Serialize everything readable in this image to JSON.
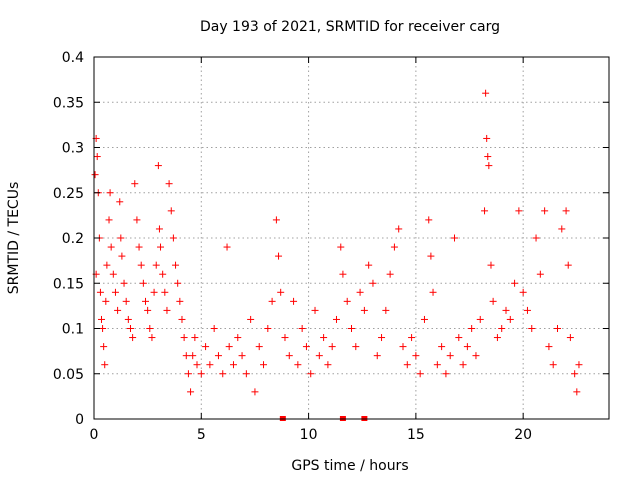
{
  "chart_data": {
    "type": "scatter",
    "title": "Day 193 of 2021, SRMTID for receiver carg",
    "xlabel": "GPS time / hours",
    "ylabel": "SRMTID / TECUs",
    "xlim": [
      0,
      24
    ],
    "ylim": [
      0,
      0.4
    ],
    "xticks": [
      0,
      5,
      10,
      15,
      20
    ],
    "xtick_labels": [
      "0",
      "5",
      "10",
      "15",
      "20"
    ],
    "yticks": [
      0,
      0.05,
      0.1,
      0.15,
      0.2,
      0.25,
      0.3,
      0.35,
      0.4
    ],
    "ytick_labels": [
      "0",
      "0.05",
      "0.1",
      "0.15",
      "0.2",
      "0.25",
      "0.3",
      "0.35",
      "0.4"
    ],
    "grid": true,
    "marker": "+",
    "color": "#ff0000",
    "series": [
      {
        "name": "SRMTID",
        "points": [
          [
            0.05,
            0.27
          ],
          [
            0.1,
            0.31
          ],
          [
            0.15,
            0.29
          ],
          [
            0.2,
            0.25
          ],
          [
            0.25,
            0.2
          ],
          [
            0.1,
            0.16
          ],
          [
            0.3,
            0.14
          ],
          [
            0.35,
            0.11
          ],
          [
            0.4,
            0.1
          ],
          [
            0.45,
            0.08
          ],
          [
            0.5,
            0.06
          ],
          [
            0.55,
            0.13
          ],
          [
            0.6,
            0.17
          ],
          [
            0.7,
            0.22
          ],
          [
            0.75,
            0.25
          ],
          [
            0.8,
            0.19
          ],
          [
            0.9,
            0.16
          ],
          [
            1.0,
            0.14
          ],
          [
            1.1,
            0.12
          ],
          [
            1.2,
            0.24
          ],
          [
            1.25,
            0.2
          ],
          [
            1.3,
            0.18
          ],
          [
            1.4,
            0.15
          ],
          [
            1.5,
            0.13
          ],
          [
            1.6,
            0.11
          ],
          [
            1.7,
            0.1
          ],
          [
            1.8,
            0.09
          ],
          [
            1.9,
            0.26
          ],
          [
            2.0,
            0.22
          ],
          [
            2.1,
            0.19
          ],
          [
            2.2,
            0.17
          ],
          [
            2.3,
            0.15
          ],
          [
            2.4,
            0.13
          ],
          [
            2.5,
            0.12
          ],
          [
            2.6,
            0.1
          ],
          [
            2.7,
            0.09
          ],
          [
            2.8,
            0.14
          ],
          [
            2.9,
            0.17
          ],
          [
            3.0,
            0.28
          ],
          [
            3.05,
            0.21
          ],
          [
            3.1,
            0.19
          ],
          [
            3.2,
            0.16
          ],
          [
            3.3,
            0.14
          ],
          [
            3.4,
            0.12
          ],
          [
            3.5,
            0.26
          ],
          [
            3.6,
            0.23
          ],
          [
            3.7,
            0.2
          ],
          [
            3.8,
            0.17
          ],
          [
            3.9,
            0.15
          ],
          [
            4.0,
            0.13
          ],
          [
            4.1,
            0.11
          ],
          [
            4.2,
            0.09
          ],
          [
            4.3,
            0.07
          ],
          [
            4.4,
            0.05
          ],
          [
            4.5,
            0.03
          ],
          [
            4.6,
            0.07
          ],
          [
            4.7,
            0.09
          ],
          [
            4.8,
            0.06
          ],
          [
            5.0,
            0.05
          ],
          [
            5.2,
            0.08
          ],
          [
            5.4,
            0.06
          ],
          [
            5.6,
            0.1
          ],
          [
            5.8,
            0.07
          ],
          [
            6.0,
            0.05
          ],
          [
            6.2,
            0.19
          ],
          [
            6.3,
            0.08
          ],
          [
            6.5,
            0.06
          ],
          [
            6.7,
            0.09
          ],
          [
            6.9,
            0.07
          ],
          [
            7.1,
            0.05
          ],
          [
            7.3,
            0.11
          ],
          [
            7.5,
            0.03
          ],
          [
            7.7,
            0.08
          ],
          [
            7.9,
            0.06
          ],
          [
            8.1,
            0.1
          ],
          [
            8.3,
            0.13
          ],
          [
            8.5,
            0.22
          ],
          [
            8.6,
            0.18
          ],
          [
            8.7,
            0.14
          ],
          [
            8.9,
            0.09
          ],
          [
            9.1,
            0.07
          ],
          [
            9.3,
            0.13
          ],
          [
            9.5,
            0.06
          ],
          [
            9.7,
            0.1
          ],
          [
            9.9,
            0.08
          ],
          [
            10.1,
            0.05
          ],
          [
            10.3,
            0.12
          ],
          [
            10.5,
            0.07
          ],
          [
            10.7,
            0.09
          ],
          [
            10.9,
            0.06
          ],
          [
            11.1,
            0.08
          ],
          [
            11.3,
            0.11
          ],
          [
            11.5,
            0.19
          ],
          [
            11.6,
            0.16
          ],
          [
            11.8,
            0.13
          ],
          [
            12.0,
            0.1
          ],
          [
            12.2,
            0.08
          ],
          [
            12.4,
            0.14
          ],
          [
            12.6,
            0.12
          ],
          [
            12.8,
            0.17
          ],
          [
            13.0,
            0.15
          ],
          [
            13.2,
            0.07
          ],
          [
            13.4,
            0.09
          ],
          [
            13.6,
            0.12
          ],
          [
            13.8,
            0.16
          ],
          [
            14.0,
            0.19
          ],
          [
            14.2,
            0.21
          ],
          [
            14.4,
            0.08
          ],
          [
            14.6,
            0.06
          ],
          [
            14.8,
            0.09
          ],
          [
            15.0,
            0.07
          ],
          [
            15.2,
            0.05
          ],
          [
            15.4,
            0.11
          ],
          [
            15.6,
            0.22
          ],
          [
            15.7,
            0.18
          ],
          [
            15.8,
            0.14
          ],
          [
            16.0,
            0.06
          ],
          [
            16.2,
            0.08
          ],
          [
            16.4,
            0.05
          ],
          [
            16.6,
            0.07
          ],
          [
            16.8,
            0.2
          ],
          [
            17.0,
            0.09
          ],
          [
            17.2,
            0.06
          ],
          [
            17.4,
            0.08
          ],
          [
            17.6,
            0.1
          ],
          [
            17.8,
            0.07
          ],
          [
            18.0,
            0.11
          ],
          [
            18.2,
            0.23
          ],
          [
            18.25,
            0.36
          ],
          [
            18.3,
            0.31
          ],
          [
            18.35,
            0.29
          ],
          [
            18.4,
            0.28
          ],
          [
            18.5,
            0.17
          ],
          [
            18.6,
            0.13
          ],
          [
            18.8,
            0.09
          ],
          [
            19.0,
            0.1
          ],
          [
            19.2,
            0.12
          ],
          [
            19.4,
            0.11
          ],
          [
            19.6,
            0.15
          ],
          [
            19.8,
            0.23
          ],
          [
            20.0,
            0.14
          ],
          [
            20.2,
            0.12
          ],
          [
            20.4,
            0.1
          ],
          [
            20.6,
            0.2
          ],
          [
            20.8,
            0.16
          ],
          [
            21.0,
            0.23
          ],
          [
            21.2,
            0.08
          ],
          [
            21.4,
            0.06
          ],
          [
            21.6,
            0.1
          ],
          [
            21.8,
            0.21
          ],
          [
            22.0,
            0.23
          ],
          [
            22.1,
            0.17
          ],
          [
            22.2,
            0.09
          ],
          [
            22.4,
            0.05
          ],
          [
            22.5,
            0.03
          ],
          [
            22.6,
            0.06
          ]
        ]
      }
    ],
    "baseline_markers": [
      8.8,
      11.6,
      12.6
    ]
  }
}
